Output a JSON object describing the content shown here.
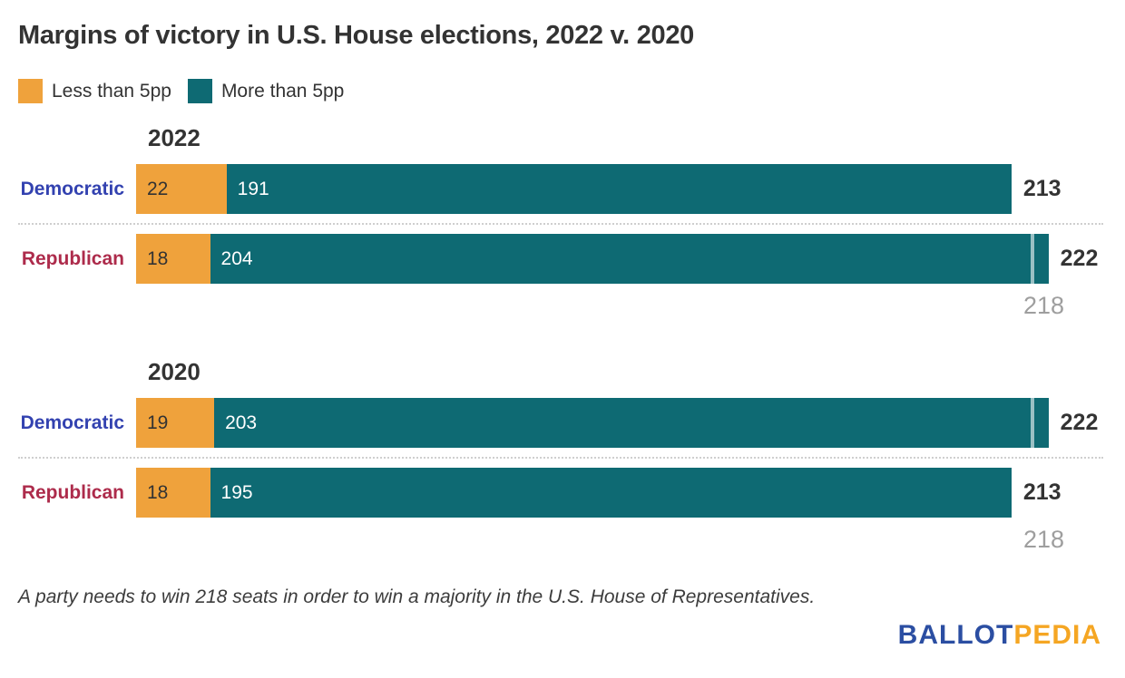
{
  "chart_data": {
    "type": "bar",
    "orientation": "horizontal",
    "stacked": true,
    "title": "Margins of victory in U.S. House elections, 2022 v. 2020",
    "legend": [
      {
        "label": "Less than 5pp",
        "color": "#EFA23C",
        "text_color": "#333333"
      },
      {
        "label": "More than 5pp",
        "color": "#0E6A73",
        "text_color": "#FFFFFF"
      }
    ],
    "xlim": [
      0,
      222
    ],
    "threshold": {
      "value": 218,
      "label": "218"
    },
    "groups": [
      {
        "label": "2022",
        "rows": [
          {
            "party": "Democratic",
            "party_color": "#3342B0",
            "segments": [
              22,
              191
            ],
            "total": 213
          },
          {
            "party": "Republican",
            "party_color": "#AD2B4B",
            "segments": [
              18,
              204
            ],
            "total": 222
          }
        ]
      },
      {
        "label": "2020",
        "rows": [
          {
            "party": "Democratic",
            "party_color": "#3342B0",
            "segments": [
              19,
              203
            ],
            "total": 222
          },
          {
            "party": "Republican",
            "party_color": "#AD2B4B",
            "segments": [
              18,
              195
            ],
            "total": 213
          }
        ]
      }
    ]
  },
  "footnote": "A party needs to win 218 seats in order to win a majority in the U.S. House of Representatives.",
  "logo": {
    "part1": "BALLOT",
    "part2": "PEDIA",
    "color1": "#2B4EA2",
    "color2": "#F5A623"
  },
  "colors": {
    "title": "#333333",
    "total_label": "#333333",
    "threshold_label": "#9E9E9E",
    "separator": "#CFCFCF",
    "threshold_line": "rgba(255,255,255,0.58)"
  }
}
